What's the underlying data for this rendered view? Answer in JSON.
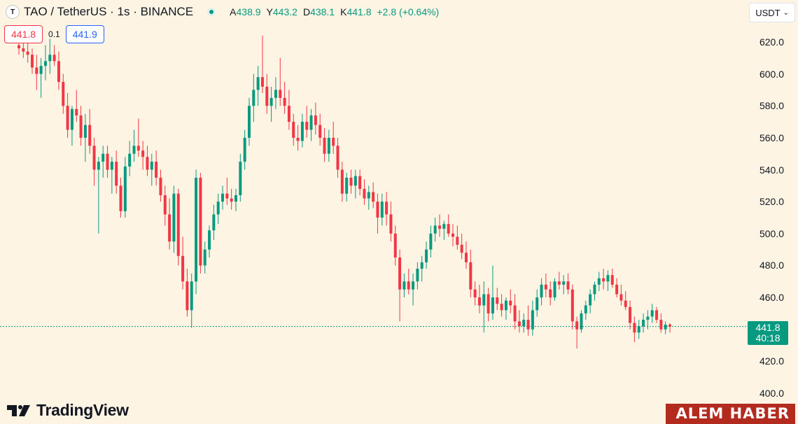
{
  "header": {
    "logo": "T",
    "symbol_title": "TAO / TetherUS · 1s · BINANCE",
    "ohlc": [
      {
        "key": "A",
        "value": "438.9"
      },
      {
        "key": "Y",
        "value": "443.2"
      },
      {
        "key": "D",
        "value": "438.1"
      },
      {
        "key": "K",
        "value": "441.8"
      }
    ],
    "change": "+2.8 (+0.64%)"
  },
  "quote": {
    "sell": "441.8",
    "spread": "0.1",
    "buy": "441.9"
  },
  "currency_selector": {
    "label": "USDT"
  },
  "last_price": {
    "price": "441.8",
    "countdown": "40:18"
  },
  "brand": {
    "name": "TradingView"
  },
  "watermark": {
    "text": "ALEM HABER"
  },
  "colors": {
    "up": "#089981",
    "down": "#f23645",
    "background": "#fdf4e3"
  },
  "chart_data": {
    "type": "candlestick",
    "y_axis": {
      "min": 400,
      "max": 620,
      "ticks": [
        "620.0",
        "600.0",
        "580.0",
        "560.0",
        "540.0",
        "520.0",
        "500.0",
        "480.0",
        "460.0",
        "440.0",
        "420.0",
        "400.0"
      ],
      "side": "right"
    },
    "last_value": 441.8,
    "candles": [
      [
        618,
        623,
        612,
        616
      ],
      [
        616,
        621,
        610,
        614
      ],
      [
        614,
        620,
        607,
        612
      ],
      [
        612,
        616,
        600,
        604
      ],
      [
        604,
        612,
        590,
        600
      ],
      [
        600,
        610,
        585,
        605
      ],
      [
        605,
        618,
        596,
        608
      ],
      [
        608,
        622,
        600,
        612
      ],
      [
        612,
        618,
        605,
        608
      ],
      [
        608,
        614,
        590,
        595
      ],
      [
        595,
        600,
        575,
        580
      ],
      [
        580,
        588,
        560,
        565
      ],
      [
        565,
        580,
        555,
        578
      ],
      [
        578,
        590,
        570,
        574
      ],
      [
        574,
        580,
        555,
        560
      ],
      [
        560,
        575,
        545,
        568
      ],
      [
        568,
        578,
        550,
        555
      ],
      [
        555,
        560,
        530,
        540
      ],
      [
        540,
        548,
        500,
        545
      ],
      [
        545,
        555,
        535,
        550
      ],
      [
        550,
        555,
        535,
        540
      ],
      [
        540,
        548,
        525,
        545
      ],
      [
        545,
        552,
        525,
        530
      ],
      [
        530,
        535,
        510,
        514
      ],
      [
        514,
        548,
        510,
        542
      ],
      [
        542,
        558,
        536,
        550
      ],
      [
        550,
        565,
        545,
        555
      ],
      [
        555,
        572,
        548,
        552
      ],
      [
        552,
        558,
        540,
        548
      ],
      [
        548,
        555,
        536,
        540
      ],
      [
        540,
        550,
        530,
        545
      ],
      [
        545,
        552,
        530,
        535
      ],
      [
        535,
        540,
        520,
        524
      ],
      [
        524,
        530,
        505,
        512
      ],
      [
        512,
        522,
        490,
        495
      ],
      [
        495,
        530,
        488,
        525
      ],
      [
        525,
        528,
        480,
        486
      ],
      [
        486,
        498,
        465,
        470
      ],
      [
        470,
        478,
        448,
        452
      ],
      [
        452,
        475,
        441,
        470
      ],
      [
        470,
        540,
        462,
        535
      ],
      [
        535,
        538,
        475,
        480
      ],
      [
        480,
        495,
        475,
        490
      ],
      [
        490,
        505,
        485,
        502
      ],
      [
        502,
        518,
        496,
        512
      ],
      [
        512,
        525,
        506,
        520
      ],
      [
        520,
        530,
        515,
        525
      ],
      [
        525,
        535,
        518,
        522
      ],
      [
        522,
        528,
        515,
        520
      ],
      [
        520,
        528,
        514,
        524
      ],
      [
        524,
        550,
        520,
        545
      ],
      [
        545,
        565,
        540,
        560
      ],
      [
        560,
        585,
        555,
        580
      ],
      [
        580,
        600,
        570,
        590
      ],
      [
        590,
        605,
        580,
        598
      ],
      [
        598,
        624,
        588,
        592
      ],
      [
        592,
        600,
        575,
        580
      ],
      [
        580,
        592,
        570,
        585
      ],
      [
        585,
        598,
        578,
        590
      ],
      [
        590,
        610,
        580,
        585
      ],
      [
        585,
        595,
        575,
        580
      ],
      [
        580,
        590,
        565,
        570
      ],
      [
        570,
        575,
        555,
        560
      ],
      [
        560,
        568,
        552,
        558
      ],
      [
        558,
        575,
        554,
        570
      ],
      [
        570,
        580,
        560,
        565
      ],
      [
        565,
        578,
        558,
        574
      ],
      [
        574,
        582,
        562,
        568
      ],
      [
        568,
        575,
        555,
        560
      ],
      [
        560,
        566,
        545,
        550
      ],
      [
        550,
        565,
        545,
        560
      ],
      [
        560,
        570,
        550,
        555
      ],
      [
        555,
        560,
        535,
        540
      ],
      [
        540,
        545,
        520,
        525
      ],
      [
        525,
        538,
        520,
        535
      ],
      [
        535,
        540,
        525,
        530
      ],
      [
        530,
        540,
        522,
        536
      ],
      [
        536,
        540,
        524,
        528
      ],
      [
        528,
        534,
        518,
        522
      ],
      [
        522,
        530,
        515,
        526
      ],
      [
        526,
        532,
        516,
        520
      ],
      [
        520,
        525,
        500,
        510
      ],
      [
        510,
        525,
        505,
        520
      ],
      [
        520,
        526,
        505,
        512
      ],
      [
        512,
        520,
        495,
        500
      ],
      [
        500,
        505,
        480,
        485
      ],
      [
        485,
        490,
        445,
        465
      ],
      [
        465,
        475,
        460,
        470
      ],
      [
        470,
        478,
        462,
        465
      ],
      [
        465,
        475,
        455,
        470
      ],
      [
        470,
        482,
        465,
        478
      ],
      [
        478,
        486,
        470,
        482
      ],
      [
        482,
        495,
        478,
        490
      ],
      [
        490,
        505,
        485,
        500
      ],
      [
        500,
        510,
        495,
        505
      ],
      [
        505,
        512,
        498,
        503
      ],
      [
        503,
        508,
        496,
        506
      ],
      [
        506,
        512,
        498,
        500
      ],
      [
        500,
        506,
        492,
        498
      ],
      [
        498,
        505,
        490,
        493
      ],
      [
        493,
        500,
        484,
        488
      ],
      [
        488,
        495,
        478,
        482
      ],
      [
        482,
        490,
        460,
        465
      ],
      [
        465,
        470,
        455,
        460
      ],
      [
        460,
        468,
        450,
        455
      ],
      [
        455,
        470,
        438,
        462
      ],
      [
        462,
        466,
        445,
        450
      ],
      [
        450,
        480,
        446,
        460
      ],
      [
        460,
        466,
        452,
        456
      ],
      [
        456,
        462,
        448,
        452
      ],
      [
        452,
        460,
        446,
        458
      ],
      [
        458,
        465,
        450,
        455
      ],
      [
        455,
        462,
        440,
        445
      ],
      [
        445,
        452,
        438,
        442
      ],
      [
        442,
        450,
        438,
        446
      ],
      [
        446,
        455,
        436,
        440
      ],
      [
        440,
        458,
        436,
        452
      ],
      [
        452,
        465,
        448,
        460
      ],
      [
        460,
        472,
        455,
        468
      ],
      [
        468,
        475,
        460,
        465
      ],
      [
        465,
        470,
        455,
        460
      ],
      [
        460,
        472,
        458,
        470
      ],
      [
        470,
        476,
        465,
        468
      ],
      [
        468,
        474,
        462,
        470
      ],
      [
        470,
        475,
        462,
        465
      ],
      [
        465,
        468,
        440,
        445
      ],
      [
        445,
        448,
        428,
        440
      ],
      [
        440,
        452,
        438,
        450
      ],
      [
        450,
        458,
        446,
        455
      ],
      [
        455,
        465,
        450,
        462
      ],
      [
        462,
        470,
        458,
        468
      ],
      [
        468,
        476,
        464,
        472
      ],
      [
        472,
        478,
        465,
        470
      ],
      [
        470,
        477,
        464,
        474
      ],
      [
        474,
        478,
        466,
        468
      ],
      [
        468,
        472,
        460,
        462
      ],
      [
        462,
        468,
        455,
        458
      ],
      [
        458,
        464,
        452,
        454
      ],
      [
        454,
        458,
        440,
        444
      ],
      [
        444,
        448,
        432,
        438
      ],
      [
        438,
        446,
        434,
        442
      ],
      [
        442,
        450,
        438,
        446
      ],
      [
        446,
        452,
        440,
        448
      ],
      [
        448,
        456,
        444,
        452
      ],
      [
        452,
        454,
        444,
        446
      ],
      [
        446,
        450,
        438,
        440
      ],
      [
        440,
        445,
        437,
        443
      ],
      [
        443,
        444,
        438,
        441.8
      ]
    ]
  }
}
